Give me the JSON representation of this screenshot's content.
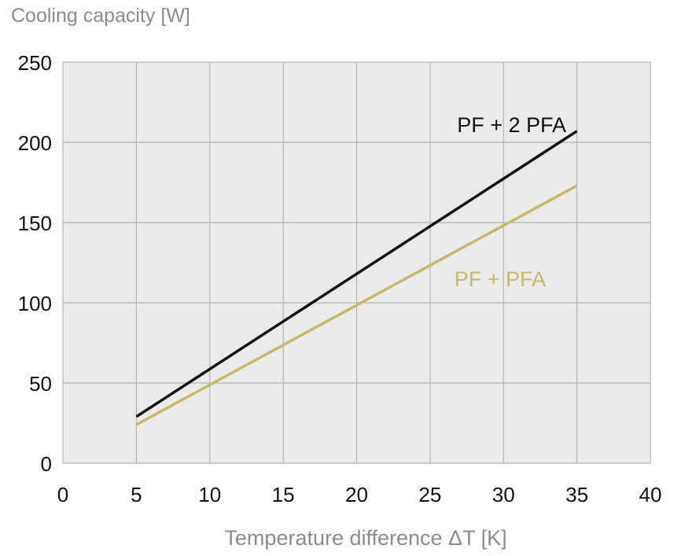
{
  "chart_data": {
    "type": "line",
    "title": "",
    "ylabel": "Cooling capacity [W]",
    "xlabel": "Temperature difference ΔT [K]",
    "xlim": [
      0,
      40
    ],
    "ylim": [
      0,
      250
    ],
    "xticks": [
      "0",
      "5",
      "10",
      "15",
      "20",
      "25",
      "30",
      "35",
      "40"
    ],
    "yticks": [
      "0",
      "50",
      "100",
      "150",
      "200",
      "250"
    ],
    "grid": true,
    "plot_background": "#ebebeb",
    "grid_color": "#b4b4b4",
    "series": [
      {
        "name": "PF + 2 PFA",
        "color": "#111111",
        "x": [
          5,
          35
        ],
        "y": [
          29,
          207
        ]
      },
      {
        "name": "PF + PFA",
        "color": "#c8b86a",
        "x": [
          5,
          35
        ],
        "y": [
          24,
          173
        ]
      }
    ]
  }
}
